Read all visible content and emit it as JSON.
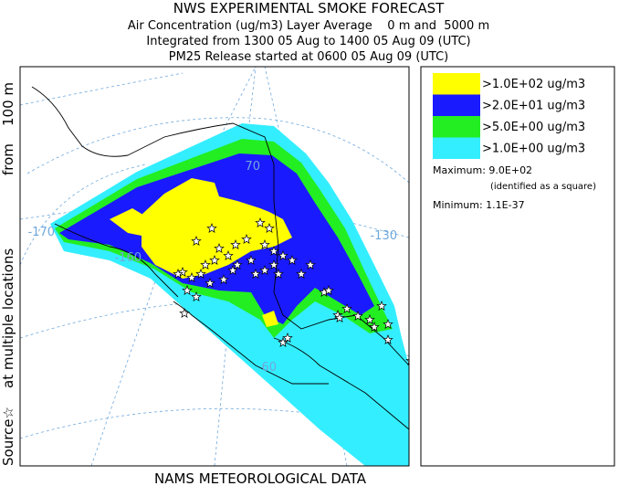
{
  "header": {
    "title": "NWS EXPERIMENTAL SMOKE FORECAST",
    "lines": [
      "Air Concentration (ug/m3) Layer Average    0 m and  5000 m",
      "Integrated from 1300 05 Aug to 1400 05 Aug 09 (UTC)",
      "PM25 Release started at 0600 05 Aug 09 (UTC)"
    ]
  },
  "side_label": [
    "Source☆",
    "at multiple locations",
    "from",
    "100 m"
  ],
  "legend": {
    "items": [
      {
        "label": ">1.0E+02 ug/m3",
        "color": "#ffff00"
      },
      {
        "label": ">2.0E+01 ug/m3",
        "color": "#1a1aff"
      },
      {
        "label": ">5.0E+00 ug/m3",
        "color": "#22ee22"
      },
      {
        "label": ">1.0E+00 ug/m3",
        "color": "#33eeff"
      }
    ]
  },
  "notes": [
    "Maximum: 9.0E+02",
    "(identified as a square)",
    "Minimum: 1.1E-37"
  ],
  "map_labels": [
    "-170",
    "-160",
    "-130",
    "70",
    "60"
  ],
  "footer": "NAMS METEOROLOGICAL DATA"
}
